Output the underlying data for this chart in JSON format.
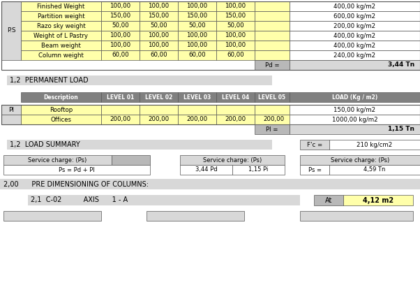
{
  "white": "#ffffff",
  "yellow": "#ffffaa",
  "gray_header": "#808080",
  "gray_light": "#d8d8d8",
  "gray_med": "#b8b8b8",
  "ps_rows": [
    [
      "Finished Weight",
      "100,00",
      "100,00",
      "100,00",
      "100,00",
      "400,00 kg/m2"
    ],
    [
      "Partition weight",
      "150,00",
      "150,00",
      "150,00",
      "150,00",
      "600,00 kg/m2"
    ],
    [
      "Razo sky weight",
      "50,00",
      "50,00",
      "50,00",
      "50,00",
      "200,00 kg/m2"
    ],
    [
      "Weight of L Pastry",
      "100,00",
      "100,00",
      "100,00",
      "100,00",
      "400,00 kg/m2"
    ],
    [
      "Beam weight",
      "100,00",
      "100,00",
      "100,00",
      "100,00",
      "400,00 kg/m2"
    ],
    [
      "Column weight",
      "60,00",
      "60,00",
      "60,00",
      "60,00",
      "240,00 kg/m2"
    ]
  ],
  "pd_value": "3,44 Tn",
  "pl_header": [
    "Description",
    "LEVEL 01",
    "LEVEL 02",
    "LEVEL 03",
    "LEVEL 04",
    "LEVEL 05",
    "LOAD (Kg / m2)"
  ],
  "pl_rows": [
    [
      "Rooftop",
      "",
      "",
      "",
      "",
      "",
      "150,00 kg/m2"
    ],
    [
      "Offices",
      "200,00",
      "200,00",
      "200,00",
      "200,00",
      "200,00",
      "1000,00 kg/m2"
    ]
  ],
  "pl_value": "1,15 Tn",
  "fc_value": "210 kg/cm2",
  "ps_formula": "Ps = Pd + Pl",
  "pd_input": "3,44 Pd",
  "pi_input": "1,15 Pi",
  "ps_result_label": "Ps =",
  "ps_result_value": "4,59 Tn",
  "pre_dim_text": "2,00      PRE DIMENSIONING OF COLUMNS:",
  "section_21_text": "2,1  C-02          AXIS      1 - A",
  "at_label": "At",
  "at_value": "4,12 m2"
}
